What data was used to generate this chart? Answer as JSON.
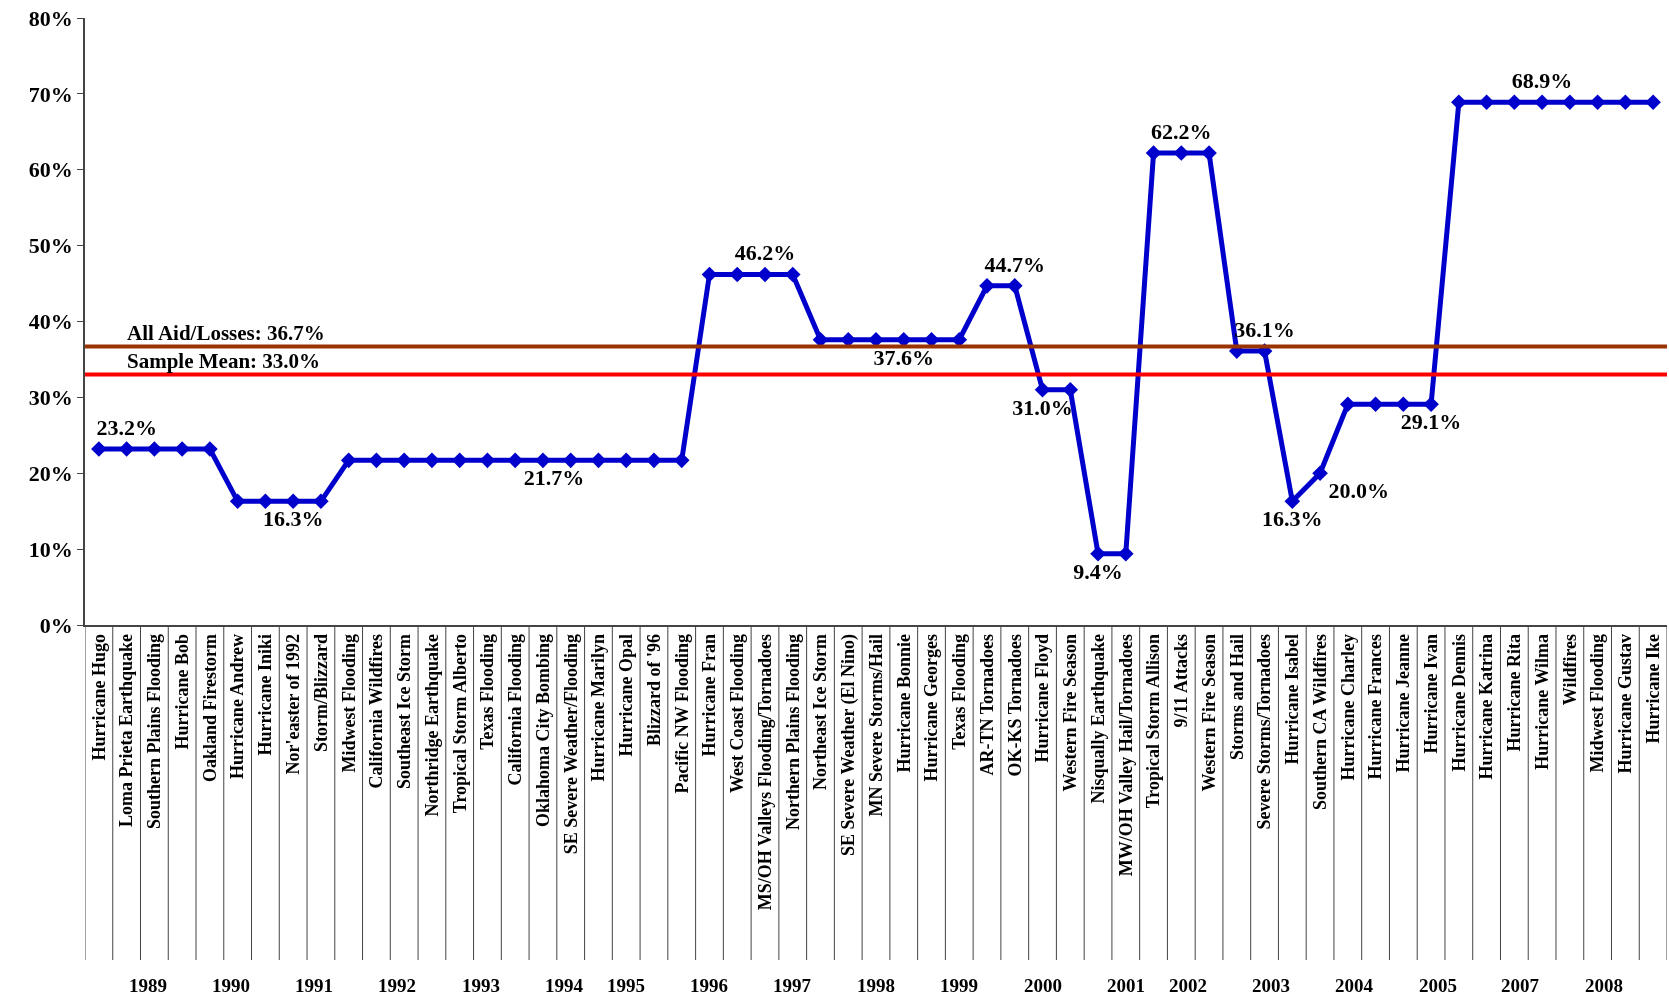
{
  "chart_data": {
    "type": "line",
    "categories": [
      "Hurricane Hugo",
      "Loma Prieta Earthquake",
      "Southern Plains Flooding",
      "Hurricane Bob",
      "Oakland Firestorm",
      "Hurricane Andrew",
      "Hurricane Iniki",
      "Nor'easter of 1992",
      "Storm/Blizzard",
      "Midwest Flooding",
      "California Wildfires",
      "Southeast Ice Storm",
      "Northridge Earthquake",
      "Tropical Storm Alberto",
      "Texas Flooding",
      "California Flooding",
      "Oklahoma City Bombing",
      "SE Severe Weather/Flooding",
      "Hurricane Marilyn",
      "Hurricane Opal",
      "Blizzard of '96",
      "Pacific NW Flooding",
      "Hurricane Fran",
      "West Coast Flooding",
      "MS/OH Valleys Flooding/Tornadoes",
      "Northern Plains Flooding",
      "Northeast Ice Storm",
      "SE Severe Weather (El Nino)",
      "MN Severe Storms/Hail",
      "Hurricane Bonnie",
      "Hurricane Georges",
      "Texas Flooding",
      "AR-TN Tornadoes",
      "OK-KS Tornadoes",
      "Hurricane Floyd",
      "Western Fire Season",
      "Nisqually Earthquake",
      "MW/OH Valley Hail/Tornadoes",
      "Tropical Storm Allison",
      "9/11 Attacks",
      "Western Fire Season",
      "Storms and Hail",
      "Severe Storms/Tornadoes",
      "Hurricane Isabel",
      "Southern CA Wildfires",
      "Hurricane Charley",
      "Hurricane Frances",
      "Hurricane Jeanne",
      "Hurricane Ivan",
      "Hurricane Dennis",
      "Hurricane Katrina",
      "Hurricane Rita",
      "Hurricane Wilma",
      "Wildfires",
      "Midwest Flooding",
      "Hurricane Gustav",
      "Hurricane Ike"
    ],
    "series": [
      {
        "color": "#0000cc",
        "values": [
          23.2,
          23.2,
          23.2,
          23.2,
          23.2,
          16.3,
          16.3,
          16.3,
          16.3,
          21.7,
          21.7,
          21.7,
          21.7,
          21.7,
          21.7,
          21.7,
          21.7,
          21.7,
          21.7,
          21.7,
          21.7,
          21.7,
          46.2,
          46.2,
          46.2,
          46.2,
          37.6,
          37.6,
          37.6,
          37.6,
          37.6,
          37.6,
          44.7,
          44.7,
          31.0,
          31.0,
          9.4,
          9.4,
          62.2,
          62.2,
          62.2,
          36.1,
          36.1,
          16.3,
          20.0,
          29.1,
          29.1,
          29.1,
          29.1,
          68.9,
          68.9,
          68.9,
          68.9,
          68.9,
          68.9,
          68.9,
          68.9
        ],
        "value_labels": [
          null,
          "23.2%",
          null,
          null,
          null,
          null,
          null,
          "16.3%",
          null,
          null,
          null,
          null,
          null,
          null,
          null,
          "21.7%",
          null,
          null,
          null,
          null,
          null,
          null,
          null,
          null,
          "46.2%",
          null,
          null,
          null,
          null,
          "37.6%",
          null,
          null,
          null,
          "44.7%",
          "31.0%",
          null,
          "9.4%",
          null,
          null,
          "62.2%",
          null,
          null,
          "36.1%",
          "16.3%",
          "20.0%",
          null,
          null,
          null,
          "29.1%",
          null,
          null,
          null,
          "68.9%",
          null,
          null,
          null,
          null
        ]
      }
    ],
    "ylim": [
      0,
      80
    ],
    "yticks": [
      {
        "value": 0,
        "label": "0%"
      },
      {
        "value": 10,
        "label": "10%"
      },
      {
        "value": 20,
        "label": "20%"
      },
      {
        "value": 30,
        "label": "30%"
      },
      {
        "value": 40,
        "label": "40%"
      },
      {
        "value": 50,
        "label": "50%"
      },
      {
        "value": 60,
        "label": "60%"
      },
      {
        "value": 70,
        "label": "70%"
      },
      {
        "value": 80,
        "label": "80%"
      }
    ],
    "ref_lines": [
      {
        "axis": "y",
        "value": 36.7,
        "label": "All Aid/Losses: 36.7%",
        "color": "#993300"
      },
      {
        "axis": "y",
        "value": 33.0,
        "label": "Sample Mean: 33.0%",
        "color": "#ff0000"
      }
    ],
    "annotations": [
      "1989",
      "1990",
      "1991",
      "1992",
      "1993",
      "1994",
      "1995",
      "1996",
      "1997",
      "1998",
      "1999",
      "2000",
      "2001",
      "2002",
      "2003",
      "2004",
      "2005",
      "2007",
      "2008"
    ],
    "marker": "diamond",
    "line_style": "solid",
    "grid": false
  }
}
